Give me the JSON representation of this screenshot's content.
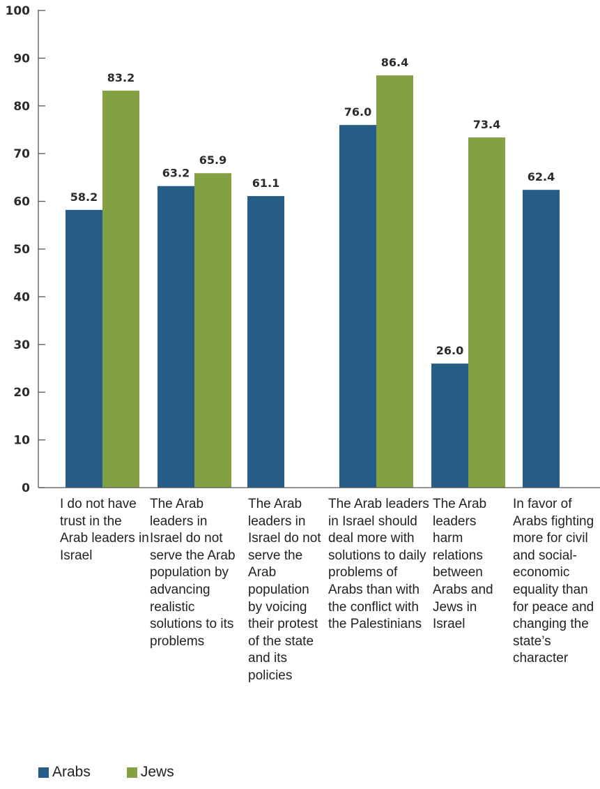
{
  "chart_data": {
    "type": "bar",
    "categories": [
      "I do not have trust in the Arab leaders in Israel",
      "The Arab leaders in Israel do not serve the Arab population by advancing realistic solutions to its problems",
      "The Arab leaders in Israel do not serve the Arab population by voicing their protest of the state and its policies",
      "The Arab leaders in Israel should deal more with solutions to daily problems of Arabs than with the conflict with the Palestinians",
      "The Arab leaders harm relations between Arabs and Jews in Israel",
      "In favor of Arabs fighting more for civil and social-economic equality than for peace and changing the state’s character"
    ],
    "series": [
      {
        "name": "Arabs",
        "color": "#255d87",
        "values": [
          58.2,
          63.2,
          61.1,
          76.0,
          26.0,
          62.4
        ],
        "labels": [
          "58.2",
          "63.2",
          "61.1",
          "76.0",
          "26.0",
          "62.4"
        ]
      },
      {
        "name": "Jews",
        "color": "#83a043",
        "values": [
          83.2,
          65.9,
          null,
          86.4,
          73.4,
          null
        ],
        "labels": [
          "83.2",
          "65.9",
          "",
          "86.4",
          "73.4",
          ""
        ]
      }
    ],
    "yticks": [
      "0",
      "10",
      "20",
      "30",
      "40",
      "50",
      "60",
      "70",
      "80",
      "90",
      "100"
    ],
    "ylim": [
      0,
      100
    ],
    "grid": false,
    "legend_position": "bottom-left"
  }
}
